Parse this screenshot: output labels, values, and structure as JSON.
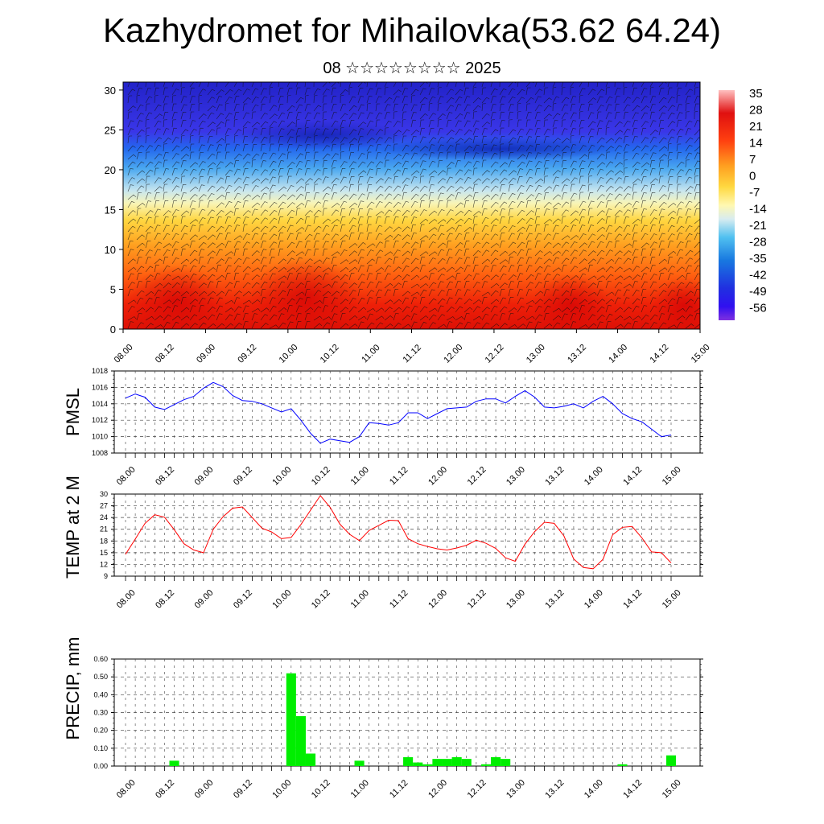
{
  "title": "Kazhydromet for Mihailovka(53.62 64.24)",
  "subtitle": "08 ☆☆☆☆☆☆☆☆ 2025",
  "chart_data": [
    {
      "type": "heatmap",
      "name": "vertical cross-section",
      "ylim": [
        0,
        31
      ],
      "yticks": [
        "0",
        "5",
        "10",
        "15",
        "20",
        "25",
        "30"
      ],
      "xticks": [
        "08.00",
        "08.12",
        "09.00",
        "09.12",
        "10.00",
        "10.12",
        "11.00",
        "11.12",
        "12.00",
        "12.12",
        "13.00",
        "13.12",
        "14.00",
        "14.12",
        "15.00"
      ],
      "colorbar_labels": [
        "35",
        "28",
        "21",
        "14",
        "7",
        "0",
        "-7",
        "-14",
        "-21",
        "-28",
        "-35",
        "-42",
        "-49",
        "-56"
      ]
    },
    {
      "type": "line",
      "ylabel": "PMSL",
      "ylim": [
        1008,
        1018
      ],
      "yticks": [
        "1008",
        "1010",
        "1012",
        "1014",
        "1016",
        "1018"
      ],
      "xticks": [
        "08.00",
        "08.12",
        "09.00",
        "09.12",
        "10.00",
        "10.12",
        "11.00",
        "11.12",
        "12.00",
        "12.12",
        "13.00",
        "13.12",
        "14.00",
        "14.12",
        "15.00"
      ],
      "color": "#0000ff",
      "values": [
        1014.7,
        1015.2,
        1014.8,
        1013.6,
        1013.3,
        1013.9,
        1014.5,
        1014.9,
        1015.9,
        1016.6,
        1016.1,
        1015.0,
        1014.4,
        1014.3,
        1014.0,
        1013.5,
        1013.0,
        1013.4,
        1012.0,
        1010.4,
        1009.2,
        1009.7,
        1009.5,
        1009.3,
        1010.0,
        1011.7,
        1011.6,
        1011.4,
        1011.7,
        1012.9,
        1012.9,
        1012.2,
        1012.8,
        1013.4,
        1013.5,
        1013.6,
        1014.3,
        1014.6,
        1014.6,
        1014.1,
        1014.9,
        1015.6,
        1014.8,
        1013.6,
        1013.5,
        1013.7,
        1014.0,
        1013.5,
        1014.3,
        1014.9,
        1014.0,
        1012.8,
        1012.2,
        1011.8,
        1010.9,
        1010.0,
        1010.2
      ]
    },
    {
      "type": "line",
      "ylabel": "TEMP at 2 M",
      "ylim": [
        9,
        30
      ],
      "yticks": [
        "9",
        "12",
        "15",
        "18",
        "21",
        "24",
        "27",
        "30"
      ],
      "xticks": [
        "08.00",
        "08.12",
        "09.00",
        "09.12",
        "10.00",
        "10.12",
        "11.00",
        "11.12",
        "12.00",
        "12.12",
        "13.00",
        "13.12",
        "14.00",
        "14.12",
        "15.00"
      ],
      "color": "#ff0000",
      "values": [
        14.6,
        18.5,
        22.5,
        24.7,
        24.1,
        20.9,
        17.3,
        15.7,
        15.0,
        21.0,
        24.2,
        26.4,
        26.7,
        24.0,
        21.3,
        20.3,
        18.6,
        18.9,
        22.2,
        25.9,
        29.6,
        26.6,
        22.3,
        19.7,
        18.1,
        20.7,
        22.0,
        23.3,
        23.2,
        18.6,
        17.3,
        16.6,
        16.0,
        15.7,
        16.2,
        16.9,
        18.2,
        17.4,
        16.1,
        13.7,
        12.8,
        17.2,
        20.4,
        22.8,
        22.5,
        19.3,
        13.4,
        11.2,
        10.9,
        13.3,
        19.6,
        21.5,
        21.7,
        18.8,
        15.2,
        15.0,
        12.4
      ]
    },
    {
      "type": "bar",
      "ylabel": "PRECIP, mm",
      "ylim": [
        0,
        0.6
      ],
      "yticks": [
        "0.00",
        "0.10",
        "0.20",
        "0.30",
        "0.40",
        "0.50",
        "0.60"
      ],
      "xticks": [
        "08.00",
        "08.12",
        "09.00",
        "09.12",
        "10.00",
        "10.12",
        "11.00",
        "11.12",
        "12.00",
        "12.12",
        "13.00",
        "13.12",
        "14.00",
        "14.12",
        "15.00"
      ],
      "color": "#00ee00",
      "values": [
        0,
        0,
        0,
        0,
        0,
        0.03,
        0,
        0,
        0,
        0,
        0,
        0,
        0,
        0,
        0,
        0,
        0,
        0.52,
        0.28,
        0.07,
        0,
        0,
        0,
        0,
        0.03,
        0,
        0,
        0,
        0,
        0.05,
        0.02,
        0.01,
        0.04,
        0.04,
        0.05,
        0.04,
        0,
        0.01,
        0.05,
        0.04,
        0,
        0,
        0,
        0,
        0,
        0,
        0,
        0,
        0,
        0,
        0,
        0.01,
        0,
        0,
        0,
        0,
        0.06
      ]
    }
  ]
}
